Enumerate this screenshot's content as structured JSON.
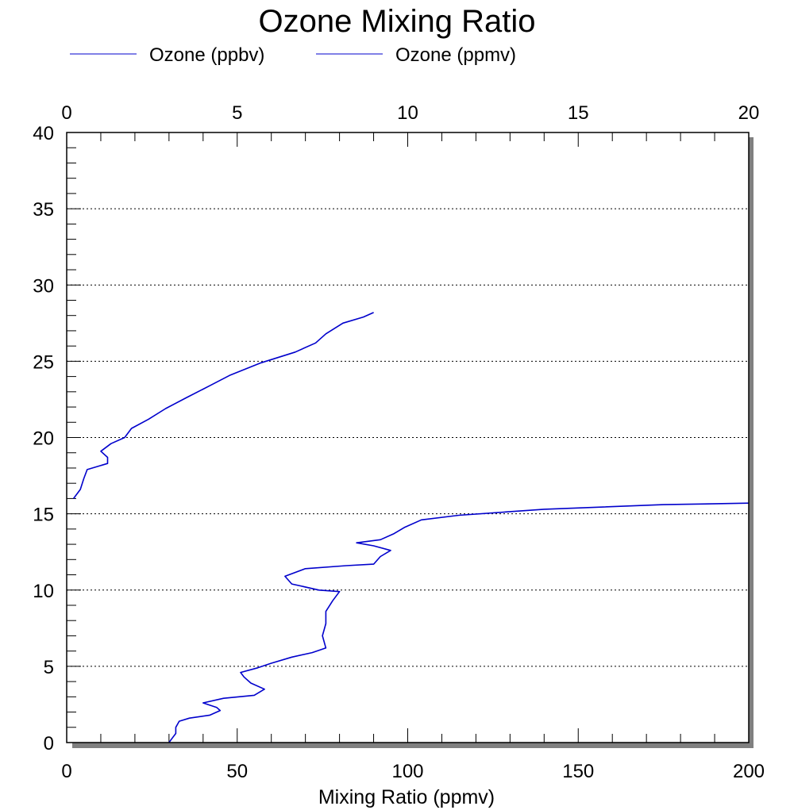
{
  "chart_data": {
    "type": "line",
    "title": "Ozone Mixing Ratio",
    "xlabel": "Mixing Ratio (ppmv)",
    "ylabel": "",
    "legend_position": "top",
    "grid": "horizontal dotted",
    "bottom_axis": {
      "min": 0,
      "max": 200,
      "ticks": [
        "0",
        "50",
        "100",
        "150",
        "200"
      ]
    },
    "top_axis": {
      "min": 0,
      "max": 20,
      "ticks": [
        "0",
        "5",
        "10",
        "15",
        "20"
      ]
    },
    "y_axis": {
      "min": 0,
      "max": 40,
      "ticks": [
        "0",
        "5",
        "10",
        "15",
        "20",
        "25",
        "30",
        "35",
        "40"
      ]
    },
    "series": [
      {
        "name": "Ozone (ppbv)",
        "axis": "bottom",
        "color": "#0000cc",
        "points": [
          [
            30,
            0.0
          ],
          [
            31,
            0.3
          ],
          [
            32,
            0.6
          ],
          [
            32,
            1.0
          ],
          [
            33,
            1.4
          ],
          [
            36,
            1.6
          ],
          [
            42,
            1.8
          ],
          [
            45,
            2.1
          ],
          [
            44,
            2.3
          ],
          [
            40,
            2.6
          ],
          [
            46,
            2.9
          ],
          [
            55,
            3.1
          ],
          [
            58,
            3.5
          ],
          [
            54,
            3.9
          ],
          [
            52,
            4.3
          ],
          [
            51,
            4.6
          ],
          [
            56,
            4.9
          ],
          [
            60,
            5.2
          ],
          [
            66,
            5.6
          ],
          [
            72,
            5.9
          ],
          [
            76,
            6.2
          ],
          [
            75,
            7.0
          ],
          [
            76,
            7.8
          ],
          [
            76,
            8.6
          ],
          [
            78,
            9.3
          ],
          [
            80,
            9.9
          ],
          [
            74,
            10.0
          ],
          [
            66,
            10.4
          ],
          [
            64,
            10.9
          ],
          [
            70,
            11.4
          ],
          [
            82,
            11.6
          ],
          [
            90,
            11.7
          ],
          [
            92,
            12.2
          ],
          [
            95,
            12.6
          ],
          [
            90,
            12.9
          ],
          [
            85,
            13.1
          ],
          [
            92,
            13.3
          ],
          [
            96,
            13.7
          ],
          [
            99,
            14.1
          ],
          [
            104,
            14.6
          ],
          [
            115,
            14.9
          ],
          [
            140,
            15.3
          ],
          [
            175,
            15.6
          ],
          [
            200,
            15.7
          ]
        ]
      },
      {
        "name": "Ozone (ppmv)",
        "axis": "top",
        "color": "#0000cc",
        "points": [
          [
            0.2,
            16.0
          ],
          [
            0.4,
            16.6
          ],
          [
            0.5,
            17.3
          ],
          [
            0.6,
            17.9
          ],
          [
            1.2,
            18.3
          ],
          [
            1.2,
            18.7
          ],
          [
            1.0,
            19.1
          ],
          [
            1.3,
            19.6
          ],
          [
            1.7,
            20.0
          ],
          [
            1.9,
            20.6
          ],
          [
            2.4,
            21.2
          ],
          [
            2.9,
            21.9
          ],
          [
            3.5,
            22.6
          ],
          [
            4.2,
            23.4
          ],
          [
            4.8,
            24.1
          ],
          [
            5.7,
            24.9
          ],
          [
            6.7,
            25.6
          ],
          [
            7.3,
            26.2
          ],
          [
            7.6,
            26.8
          ],
          [
            8.1,
            27.5
          ],
          [
            8.7,
            27.9
          ],
          [
            9.0,
            28.2
          ]
        ]
      }
    ]
  }
}
